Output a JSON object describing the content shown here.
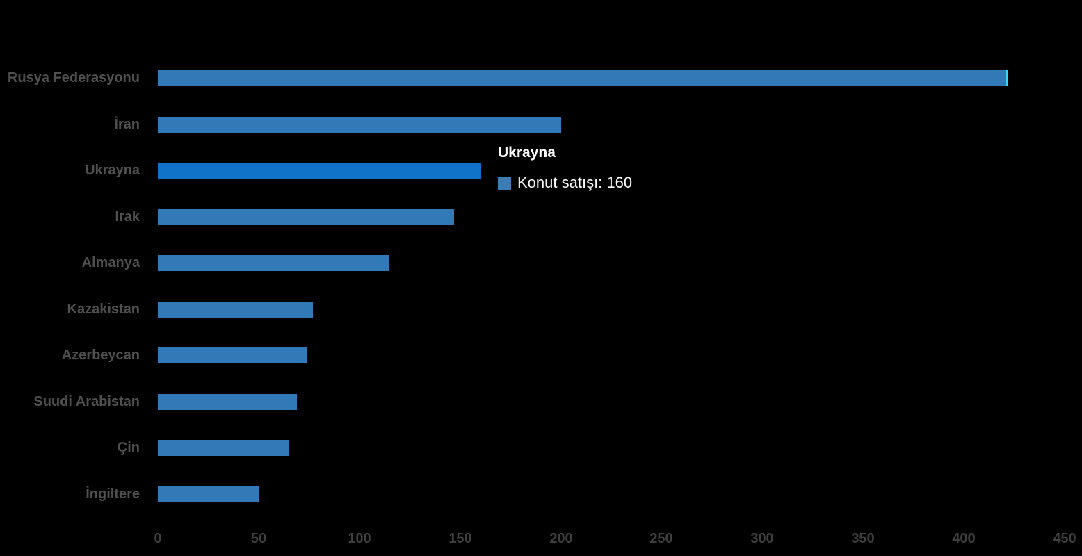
{
  "chart_data": {
    "type": "bar",
    "orientation": "horizontal",
    "title": "",
    "xlabel": "",
    "ylabel": "",
    "series_name": "Konut satışı",
    "categories": [
      "Rusya Federasyonu",
      "İran",
      "Ukrayna",
      "Irak",
      "Almanya",
      "Kazakistan",
      "Azerbeycan",
      "Suudi Arabistan",
      "Çin",
      "İngiltere"
    ],
    "values": [
      421,
      200,
      160,
      147,
      115,
      77,
      74,
      69,
      65,
      50
    ],
    "xlim": [
      0,
      450
    ],
    "x_ticks": [
      "0",
      "50",
      "100",
      "150",
      "200",
      "250",
      "300",
      "350",
      "400",
      "450"
    ],
    "grid": false,
    "legend_position": "none",
    "highlighted_category": "Ukrayna",
    "edge_accent_category": "Rusya Federasyonu",
    "colors": {
      "background": "#000000",
      "bar": "#317ab7",
      "bar_highlight": "#1173c8",
      "bar_edge_accent": "#3bd4f0",
      "category_label": "#4f4f4f",
      "tick_label": "#3f3f3f",
      "tooltip_text": "#ffffff",
      "tooltip_swatch": "#3b7cb2"
    }
  },
  "tooltip": {
    "title": "Ukrayna",
    "series_label": "Konut satışı",
    "value": "160",
    "text": "Konut satışı: 160"
  }
}
